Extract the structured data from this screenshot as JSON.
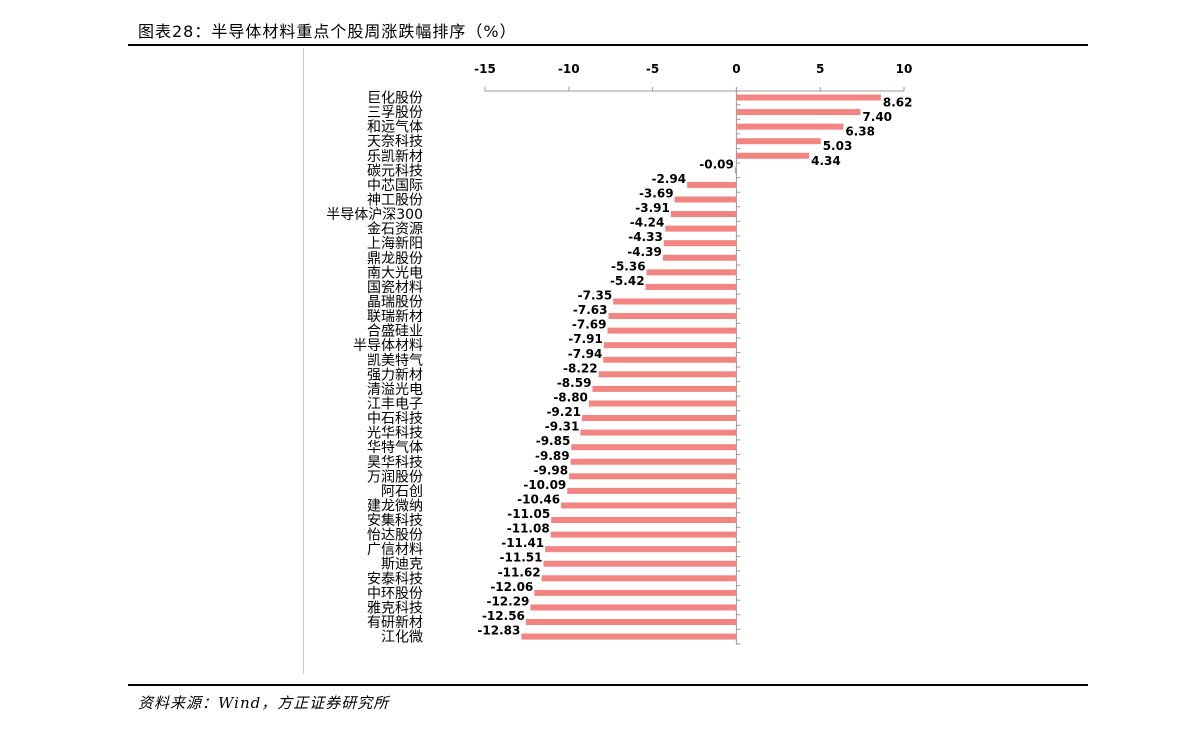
{
  "header": {
    "title": "图表28：半导体材料重点个股周涨跌幅排序（%）"
  },
  "footer": {
    "source": "资料来源：Wind，方正证券研究所"
  },
  "colors": {
    "bar": "#f28482",
    "axis": "#999999",
    "rule": "#000000"
  },
  "chart_data": {
    "type": "bar",
    "orientation": "horizontal",
    "title": "图表28：半导体材料重点个股周涨跌幅排序（%）",
    "xlabel": "",
    "ylabel": "",
    "xlim": [
      -15,
      10
    ],
    "x_ticks": [
      -15,
      -10,
      -5,
      0,
      5,
      10
    ],
    "x_axis_position": "top",
    "grid": false,
    "categories": [
      "巨化股份",
      "三孚股份",
      "和远气体",
      "天奈科技",
      "乐凯新材",
      "碳元科技",
      "中芯国际",
      "神工股份",
      "半导体沪深300",
      "金石资源",
      "上海新阳",
      "鼎龙股份",
      "南大光电",
      "国瓷材料",
      "晶瑞股份",
      "联瑞新材",
      "合盛硅业",
      "半导体材料",
      "凯美特气",
      "强力新材",
      "清溢光电",
      "江丰电子",
      "中石科技",
      "光华科技",
      "华特气体",
      "昊华科技",
      "万润股份",
      "阿石创",
      "建龙微纳",
      "安集科技",
      "怡达股份",
      "广信材料",
      "斯迪克",
      "安泰科技",
      "中环股份",
      "雅克科技",
      "有研新材",
      "江化微"
    ],
    "values": [
      8.62,
      7.4,
      6.38,
      5.03,
      4.34,
      -0.09,
      -2.94,
      -3.69,
      -3.91,
      -4.24,
      -4.33,
      -4.39,
      -5.36,
      -5.42,
      -7.35,
      -7.63,
      -7.69,
      -7.91,
      -7.94,
      -8.22,
      -8.59,
      -8.8,
      -9.21,
      -9.31,
      -9.85,
      -9.89,
      -9.98,
      -10.09,
      -10.46,
      -11.05,
      -11.08,
      -11.41,
      -11.51,
      -11.62,
      -12.06,
      -12.29,
      -12.56,
      -12.83
    ],
    "value_labels": [
      "8.62",
      "7.40",
      "6.38",
      "5.03",
      "4.34",
      "-0.09",
      "-2.94",
      "-3.69",
      "-3.91",
      "-4.24",
      "-4.33",
      "-4.39",
      "-5.36",
      "-5.42",
      "-7.35",
      "-7.63",
      "-7.69",
      "-7.91",
      "-7.94",
      "-8.22",
      "-8.59",
      "-8.80",
      "-9.21",
      "-9.31",
      "-9.85",
      "-9.89",
      "-9.98",
      "-10.09",
      "-10.46",
      "-11.05",
      "-11.08",
      "-11.41",
      "-11.51",
      "-11.62",
      "-12.06",
      "-12.29",
      "-12.56",
      "-12.83"
    ],
    "x_tick_labels": [
      "-15",
      "-10",
      "-5",
      "0",
      "5",
      "10"
    ]
  }
}
